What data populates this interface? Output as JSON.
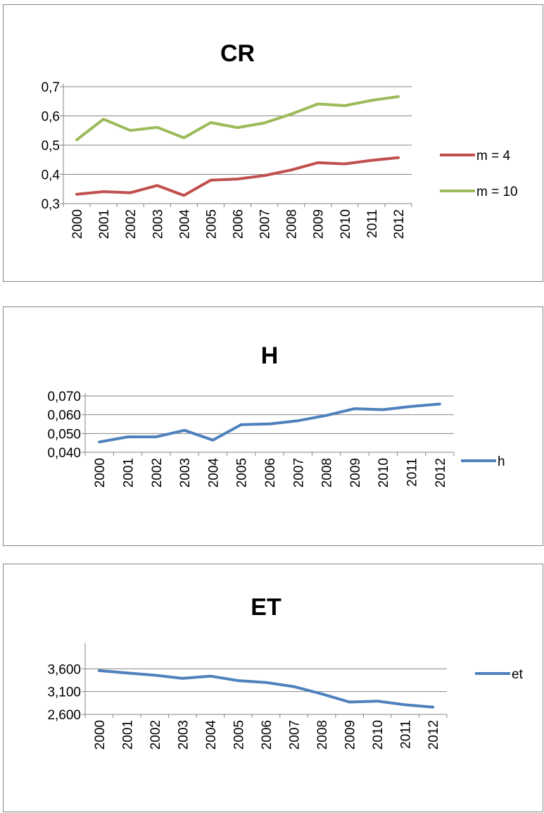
{
  "charts": [
    {
      "title": "CR",
      "chart_data": {
        "type": "line",
        "title": "CR",
        "x": [
          "2000",
          "2001",
          "2002",
          "2003",
          "2004",
          "2005",
          "2006",
          "2007",
          "2008",
          "2009",
          "2010",
          "2011",
          "2012"
        ],
        "ylim": [
          0.3,
          0.7
        ],
        "yticks": [
          "0,3",
          "0,4",
          "0,5",
          "0,6",
          "0,7"
        ],
        "grid": true,
        "legend_position": "right",
        "series": [
          {
            "name": "m = 4",
            "color": "#c0504d",
            "values": [
              0.332,
              0.341,
              0.337,
              0.362,
              0.328,
              0.38,
              0.384,
              0.396,
              0.415,
              0.44,
              0.436,
              0.448,
              0.457
            ]
          },
          {
            "name": "m = 10",
            "color": "#9bbb59",
            "values": [
              0.518,
              0.589,
              0.55,
              0.561,
              0.525,
              0.577,
              0.56,
              0.576,
              0.606,
              0.641,
              0.635,
              0.653,
              0.666
            ]
          }
        ]
      }
    },
    {
      "title": "H",
      "chart_data": {
        "type": "line",
        "title": "H",
        "x": [
          "2000",
          "2001",
          "2002",
          "2003",
          "2004",
          "2005",
          "2006",
          "2007",
          "2008",
          "2009",
          "2010",
          "2011",
          "2012"
        ],
        "ylim": [
          0.04,
          0.07
        ],
        "yticks": [
          "0,040",
          "0,050",
          "0,060",
          "0,070"
        ],
        "grid": true,
        "legend_position": "right",
        "series": [
          {
            "name": "h",
            "color": "#4f81bd",
            "values": [
              0.0455,
              0.0482,
              0.0482,
              0.0517,
              0.0465,
              0.0547,
              0.0551,
              0.0568,
              0.0596,
              0.0632,
              0.0627,
              0.0644,
              0.0657
            ]
          }
        ]
      }
    },
    {
      "title": "ET",
      "chart_data": {
        "type": "line",
        "title": "ET",
        "x": [
          "2000",
          "2001",
          "2002",
          "2003",
          "2004",
          "2005",
          "2006",
          "2007",
          "2008",
          "2009",
          "2010",
          "2011",
          "2012"
        ],
        "ylim": [
          2.6,
          4.1
        ],
        "yticks": [
          "2,600",
          "3,100",
          "3,600"
        ],
        "grid": true,
        "legend_position": "right",
        "series": [
          {
            "name": "et",
            "color": "#4f81bd",
            "values": [
              3.56,
              3.51,
              3.46,
              3.39,
              3.44,
              3.34,
              3.3,
              3.21,
              3.05,
              2.87,
              2.89,
              2.81,
              2.76
            ]
          }
        ]
      }
    }
  ]
}
